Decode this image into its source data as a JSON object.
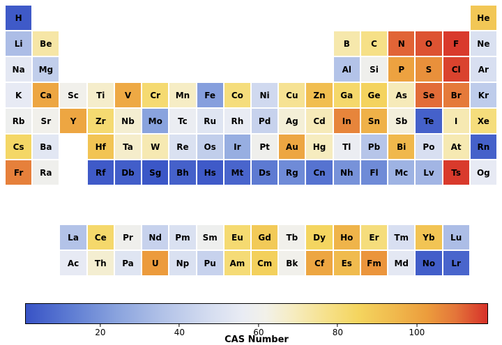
{
  "chart_data": {
    "type": "heatmap",
    "title": "",
    "subtitle": "",
    "layout": "periodic-table",
    "colorbar": {
      "label": "CAS Number",
      "ticks": [
        20,
        40,
        60,
        80,
        100
      ],
      "vmin": 1,
      "vmax": 118,
      "orientation": "horizontal"
    },
    "colormap_stops": [
      [
        0.0,
        "#3853c6"
      ],
      [
        0.1,
        "#5f7dd3"
      ],
      [
        0.2,
        "#8ba4de"
      ],
      [
        0.3,
        "#b3c3e8"
      ],
      [
        0.4,
        "#d5ddf0"
      ],
      [
        0.47,
        "#e9ecf4"
      ],
      [
        0.52,
        "#f2f1e9"
      ],
      [
        0.58,
        "#f6ecc0"
      ],
      [
        0.65,
        "#f6e18c"
      ],
      [
        0.72,
        "#f4d55f"
      ],
      [
        0.8,
        "#f0b94d"
      ],
      [
        0.87,
        "#ec9c3c"
      ],
      [
        0.93,
        "#e4763a"
      ],
      [
        1.0,
        "#d7322a"
      ]
    ],
    "elements": [
      {
        "s": "H",
        "r": 1,
        "c": 1,
        "v": 3
      },
      {
        "s": "He",
        "r": 1,
        "c": 18,
        "v": 90
      },
      {
        "s": "Li",
        "r": 2,
        "c": 1,
        "v": 34
      },
      {
        "s": "Be",
        "r": 2,
        "c": 2,
        "v": 73
      },
      {
        "s": "B",
        "r": 2,
        "c": 13,
        "v": 72
      },
      {
        "s": "C",
        "r": 2,
        "c": 14,
        "v": 78
      },
      {
        "s": "N",
        "r": 2,
        "c": 15,
        "v": 112
      },
      {
        "s": "O",
        "r": 2,
        "c": 16,
        "v": 114
      },
      {
        "s": "F",
        "r": 2,
        "c": 17,
        "v": 117
      },
      {
        "s": "Ne",
        "r": 2,
        "c": 18,
        "v": 50
      },
      {
        "s": "Na",
        "r": 3,
        "c": 1,
        "v": 54
      },
      {
        "s": "Mg",
        "r": 3,
        "c": 2,
        "v": 41
      },
      {
        "s": "Al",
        "r": 3,
        "c": 13,
        "v": 36
      },
      {
        "s": "Si",
        "r": 3,
        "c": 14,
        "v": 60
      },
      {
        "s": "P",
        "r": 3,
        "c": 15,
        "v": 101
      },
      {
        "s": "S",
        "r": 3,
        "c": 16,
        "v": 105
      },
      {
        "s": "Cl",
        "r": 3,
        "c": 17,
        "v": 116
      },
      {
        "s": "Ar",
        "r": 3,
        "c": 18,
        "v": 49
      },
      {
        "s": "K",
        "r": 4,
        "c": 1,
        "v": 55
      },
      {
        "s": "Ca",
        "r": 4,
        "c": 2,
        "v": 100
      },
      {
        "s": "Sc",
        "r": 4,
        "c": 3,
        "v": 61
      },
      {
        "s": "Ti",
        "r": 4,
        "c": 4,
        "v": 67
      },
      {
        "s": "V",
        "r": 4,
        "c": 5,
        "v": 99
      },
      {
        "s": "Cr",
        "r": 4,
        "c": 6,
        "v": 82
      },
      {
        "s": "Mn",
        "r": 4,
        "c": 7,
        "v": 68
      },
      {
        "s": "Fe",
        "r": 4,
        "c": 8,
        "v": 23
      },
      {
        "s": "Co",
        "r": 4,
        "c": 9,
        "v": 80
      },
      {
        "s": "Ni",
        "r": 4,
        "c": 10,
        "v": 46
      },
      {
        "s": "Cu",
        "r": 4,
        "c": 11,
        "v": 76
      },
      {
        "s": "Zn",
        "r": 4,
        "c": 12,
        "v": 93
      },
      {
        "s": "Ga",
        "r": 4,
        "c": 13,
        "v": 83
      },
      {
        "s": "Ge",
        "r": 4,
        "c": 14,
        "v": 86
      },
      {
        "s": "As",
        "r": 4,
        "c": 15,
        "v": 70
      },
      {
        "s": "Se",
        "r": 4,
        "c": 16,
        "v": 111
      },
      {
        "s": "Br",
        "r": 4,
        "c": 17,
        "v": 109
      },
      {
        "s": "Kr",
        "r": 4,
        "c": 18,
        "v": 40
      },
      {
        "s": "Rb",
        "r": 5,
        "c": 1,
        "v": 59
      },
      {
        "s": "Sr",
        "r": 5,
        "c": 2,
        "v": 61
      },
      {
        "s": "Y",
        "r": 5,
        "c": 3,
        "v": 100
      },
      {
        "s": "Zr",
        "r": 5,
        "c": 4,
        "v": 82
      },
      {
        "s": "Nb",
        "r": 5,
        "c": 5,
        "v": 66
      },
      {
        "s": "Mo",
        "r": 5,
        "c": 6,
        "v": 24
      },
      {
        "s": "Tc",
        "r": 5,
        "c": 7,
        "v": 57
      },
      {
        "s": "Ru",
        "r": 5,
        "c": 8,
        "v": 52
      },
      {
        "s": "Rh",
        "r": 5,
        "c": 9,
        "v": 56
      },
      {
        "s": "Pd",
        "r": 5,
        "c": 10,
        "v": 43
      },
      {
        "s": "Ag",
        "r": 5,
        "c": 11,
        "v": 65
      },
      {
        "s": "Cd",
        "r": 5,
        "c": 12,
        "v": 70
      },
      {
        "s": "In",
        "r": 5,
        "c": 13,
        "v": 107
      },
      {
        "s": "Sn",
        "r": 5,
        "c": 14,
        "v": 97
      },
      {
        "s": "Sb",
        "r": 5,
        "c": 15,
        "v": 64
      },
      {
        "s": "Te",
        "r": 5,
        "c": 16,
        "v": 5
      },
      {
        "s": "I",
        "r": 5,
        "c": 17,
        "v": 71
      },
      {
        "s": "Xe",
        "r": 5,
        "c": 18,
        "v": 80
      },
      {
        "s": "Cs",
        "r": 6,
        "c": 1,
        "v": 84
      },
      {
        "s": "Ba",
        "r": 6,
        "c": 2,
        "v": 53
      },
      {
        "s": "Hf",
        "r": 6,
        "c": 4,
        "v": 91
      },
      {
        "s": "Ta",
        "r": 6,
        "c": 5,
        "v": 67
      },
      {
        "s": "W",
        "r": 6,
        "c": 6,
        "v": 71
      },
      {
        "s": "Re",
        "r": 6,
        "c": 7,
        "v": 50
      },
      {
        "s": "Os",
        "r": 6,
        "c": 8,
        "v": 41
      },
      {
        "s": "Ir",
        "r": 6,
        "c": 9,
        "v": 28
      },
      {
        "s": "Pt",
        "r": 6,
        "c": 10,
        "v": 60
      },
      {
        "s": "Au",
        "r": 6,
        "c": 11,
        "v": 100
      },
      {
        "s": "Hg",
        "r": 6,
        "c": 12,
        "v": 69
      },
      {
        "s": "Tl",
        "r": 6,
        "c": 13,
        "v": 57
      },
      {
        "s": "Pb",
        "r": 6,
        "c": 14,
        "v": 37
      },
      {
        "s": "Bi",
        "r": 6,
        "c": 15,
        "v": 95
      },
      {
        "s": "Po",
        "r": 6,
        "c": 16,
        "v": 49
      },
      {
        "s": "At",
        "r": 6,
        "c": 17,
        "v": 71
      },
      {
        "s": "Rn",
        "r": 6,
        "c": 18,
        "v": 5
      },
      {
        "s": "Fr",
        "r": 7,
        "c": 1,
        "v": 108
      },
      {
        "s": "Ra",
        "r": 7,
        "c": 2,
        "v": 60
      },
      {
        "s": "Rf",
        "r": 7,
        "c": 4,
        "v": 3
      },
      {
        "s": "Db",
        "r": 7,
        "c": 5,
        "v": 4
      },
      {
        "s": "Sg",
        "r": 7,
        "c": 6,
        "v": 2
      },
      {
        "s": "Bh",
        "r": 7,
        "c": 7,
        "v": 5
      },
      {
        "s": "Hs",
        "r": 7,
        "c": 8,
        "v": 3
      },
      {
        "s": "Mt",
        "r": 7,
        "c": 9,
        "v": 6
      },
      {
        "s": "Ds",
        "r": 7,
        "c": 10,
        "v": 12
      },
      {
        "s": "Rg",
        "r": 7,
        "c": 11,
        "v": 17
      },
      {
        "s": "Cn",
        "r": 7,
        "c": 12,
        "v": 10
      },
      {
        "s": "Nh",
        "r": 7,
        "c": 13,
        "v": 19
      },
      {
        "s": "Fl",
        "r": 7,
        "c": 14,
        "v": 17
      },
      {
        "s": "Mc",
        "r": 7,
        "c": 15,
        "v": 30
      },
      {
        "s": "Lv",
        "r": 7,
        "c": 16,
        "v": 31
      },
      {
        "s": "Ts",
        "r": 7,
        "c": 17,
        "v": 117
      },
      {
        "s": "Og",
        "r": 7,
        "c": 18,
        "v": 55
      },
      {
        "s": "La",
        "r": 8,
        "c": 3,
        "v": 36
      },
      {
        "s": "Ce",
        "r": 8,
        "c": 4,
        "v": 83
      },
      {
        "s": "Pr",
        "r": 8,
        "c": 5,
        "v": 60
      },
      {
        "s": "Nd",
        "r": 8,
        "c": 6,
        "v": 43
      },
      {
        "s": "Pm",
        "r": 8,
        "c": 7,
        "v": 50
      },
      {
        "s": "Sm",
        "r": 8,
        "c": 8,
        "v": 59
      },
      {
        "s": "Eu",
        "r": 8,
        "c": 9,
        "v": 82
      },
      {
        "s": "Gd",
        "r": 8,
        "c": 10,
        "v": 89
      },
      {
        "s": "Tb",
        "r": 8,
        "c": 11,
        "v": 61
      },
      {
        "s": "Dy",
        "r": 8,
        "c": 12,
        "v": 85
      },
      {
        "s": "Ho",
        "r": 8,
        "c": 13,
        "v": 96
      },
      {
        "s": "Er",
        "r": 8,
        "c": 14,
        "v": 80
      },
      {
        "s": "Tm",
        "r": 8,
        "c": 15,
        "v": 49
      },
      {
        "s": "Yb",
        "r": 8,
        "c": 16,
        "v": 91
      },
      {
        "s": "Lu",
        "r": 8,
        "c": 17,
        "v": 34
      },
      {
        "s": "Ac",
        "r": 9,
        "c": 3,
        "v": 55
      },
      {
        "s": "Th",
        "r": 9,
        "c": 4,
        "v": 66
      },
      {
        "s": "Pa",
        "r": 9,
        "c": 5,
        "v": 52
      },
      {
        "s": "U",
        "r": 9,
        "c": 6,
        "v": 103
      },
      {
        "s": "Np",
        "r": 9,
        "c": 7,
        "v": 50
      },
      {
        "s": "Pu",
        "r": 9,
        "c": 8,
        "v": 43
      },
      {
        "s": "Am",
        "r": 9,
        "c": 9,
        "v": 81
      },
      {
        "s": "Cm",
        "r": 9,
        "c": 10,
        "v": 87
      },
      {
        "s": "Bk",
        "r": 9,
        "c": 11,
        "v": 61
      },
      {
        "s": "Cf",
        "r": 9,
        "c": 12,
        "v": 100
      },
      {
        "s": "Es",
        "r": 9,
        "c": 13,
        "v": 94
      },
      {
        "s": "Fm",
        "r": 9,
        "c": 14,
        "v": 104
      },
      {
        "s": "Md",
        "r": 9,
        "c": 15,
        "v": 54
      },
      {
        "s": "No",
        "r": 9,
        "c": 16,
        "v": 4
      },
      {
        "s": "Lr",
        "r": 9,
        "c": 17,
        "v": 6
      }
    ]
  }
}
